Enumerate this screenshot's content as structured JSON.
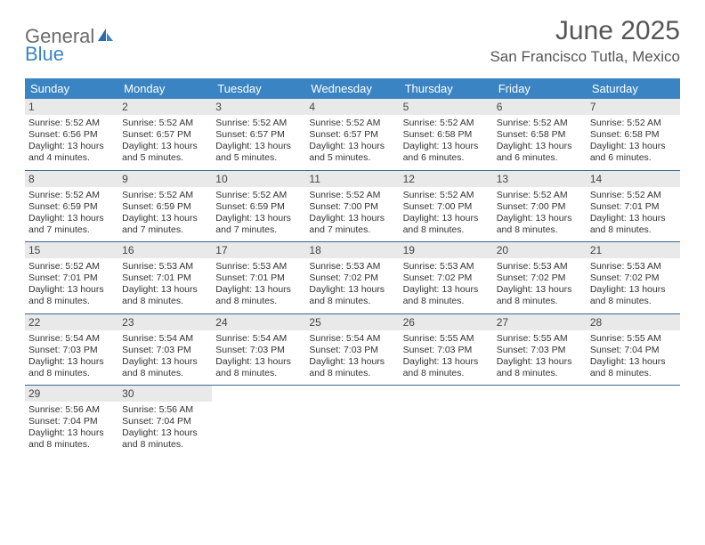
{
  "brand": {
    "part1": "General",
    "part2": "Blue"
  },
  "title": "June 2025",
  "location": "San Francisco Tutla, Mexico",
  "colors": {
    "header_bg": "#3b84c4",
    "daynum_bg": "#e9e9e9",
    "week_border": "#3b6a96",
    "text": "#333333",
    "title_text": "#555555",
    "brand_gray": "#6b6b6b",
    "brand_blue": "#3b84c4",
    "background": "#ffffff"
  },
  "days_of_week": [
    "Sunday",
    "Monday",
    "Tuesday",
    "Wednesday",
    "Thursday",
    "Friday",
    "Saturday"
  ],
  "weeks": [
    [
      {
        "n": "1",
        "sr": "Sunrise: 5:52 AM",
        "ss": "Sunset: 6:56 PM",
        "d1": "Daylight: 13 hours",
        "d2": "and 4 minutes."
      },
      {
        "n": "2",
        "sr": "Sunrise: 5:52 AM",
        "ss": "Sunset: 6:57 PM",
        "d1": "Daylight: 13 hours",
        "d2": "and 5 minutes."
      },
      {
        "n": "3",
        "sr": "Sunrise: 5:52 AM",
        "ss": "Sunset: 6:57 PM",
        "d1": "Daylight: 13 hours",
        "d2": "and 5 minutes."
      },
      {
        "n": "4",
        "sr": "Sunrise: 5:52 AM",
        "ss": "Sunset: 6:57 PM",
        "d1": "Daylight: 13 hours",
        "d2": "and 5 minutes."
      },
      {
        "n": "5",
        "sr": "Sunrise: 5:52 AM",
        "ss": "Sunset: 6:58 PM",
        "d1": "Daylight: 13 hours",
        "d2": "and 6 minutes."
      },
      {
        "n": "6",
        "sr": "Sunrise: 5:52 AM",
        "ss": "Sunset: 6:58 PM",
        "d1": "Daylight: 13 hours",
        "d2": "and 6 minutes."
      },
      {
        "n": "7",
        "sr": "Sunrise: 5:52 AM",
        "ss": "Sunset: 6:58 PM",
        "d1": "Daylight: 13 hours",
        "d2": "and 6 minutes."
      }
    ],
    [
      {
        "n": "8",
        "sr": "Sunrise: 5:52 AM",
        "ss": "Sunset: 6:59 PM",
        "d1": "Daylight: 13 hours",
        "d2": "and 7 minutes."
      },
      {
        "n": "9",
        "sr": "Sunrise: 5:52 AM",
        "ss": "Sunset: 6:59 PM",
        "d1": "Daylight: 13 hours",
        "d2": "and 7 minutes."
      },
      {
        "n": "10",
        "sr": "Sunrise: 5:52 AM",
        "ss": "Sunset: 6:59 PM",
        "d1": "Daylight: 13 hours",
        "d2": "and 7 minutes."
      },
      {
        "n": "11",
        "sr": "Sunrise: 5:52 AM",
        "ss": "Sunset: 7:00 PM",
        "d1": "Daylight: 13 hours",
        "d2": "and 7 minutes."
      },
      {
        "n": "12",
        "sr": "Sunrise: 5:52 AM",
        "ss": "Sunset: 7:00 PM",
        "d1": "Daylight: 13 hours",
        "d2": "and 8 minutes."
      },
      {
        "n": "13",
        "sr": "Sunrise: 5:52 AM",
        "ss": "Sunset: 7:00 PM",
        "d1": "Daylight: 13 hours",
        "d2": "and 8 minutes."
      },
      {
        "n": "14",
        "sr": "Sunrise: 5:52 AM",
        "ss": "Sunset: 7:01 PM",
        "d1": "Daylight: 13 hours",
        "d2": "and 8 minutes."
      }
    ],
    [
      {
        "n": "15",
        "sr": "Sunrise: 5:52 AM",
        "ss": "Sunset: 7:01 PM",
        "d1": "Daylight: 13 hours",
        "d2": "and 8 minutes."
      },
      {
        "n": "16",
        "sr": "Sunrise: 5:53 AM",
        "ss": "Sunset: 7:01 PM",
        "d1": "Daylight: 13 hours",
        "d2": "and 8 minutes."
      },
      {
        "n": "17",
        "sr": "Sunrise: 5:53 AM",
        "ss": "Sunset: 7:01 PM",
        "d1": "Daylight: 13 hours",
        "d2": "and 8 minutes."
      },
      {
        "n": "18",
        "sr": "Sunrise: 5:53 AM",
        "ss": "Sunset: 7:02 PM",
        "d1": "Daylight: 13 hours",
        "d2": "and 8 minutes."
      },
      {
        "n": "19",
        "sr": "Sunrise: 5:53 AM",
        "ss": "Sunset: 7:02 PM",
        "d1": "Daylight: 13 hours",
        "d2": "and 8 minutes."
      },
      {
        "n": "20",
        "sr": "Sunrise: 5:53 AM",
        "ss": "Sunset: 7:02 PM",
        "d1": "Daylight: 13 hours",
        "d2": "and 8 minutes."
      },
      {
        "n": "21",
        "sr": "Sunrise: 5:53 AM",
        "ss": "Sunset: 7:02 PM",
        "d1": "Daylight: 13 hours",
        "d2": "and 8 minutes."
      }
    ],
    [
      {
        "n": "22",
        "sr": "Sunrise: 5:54 AM",
        "ss": "Sunset: 7:03 PM",
        "d1": "Daylight: 13 hours",
        "d2": "and 8 minutes."
      },
      {
        "n": "23",
        "sr": "Sunrise: 5:54 AM",
        "ss": "Sunset: 7:03 PM",
        "d1": "Daylight: 13 hours",
        "d2": "and 8 minutes."
      },
      {
        "n": "24",
        "sr": "Sunrise: 5:54 AM",
        "ss": "Sunset: 7:03 PM",
        "d1": "Daylight: 13 hours",
        "d2": "and 8 minutes."
      },
      {
        "n": "25",
        "sr": "Sunrise: 5:54 AM",
        "ss": "Sunset: 7:03 PM",
        "d1": "Daylight: 13 hours",
        "d2": "and 8 minutes."
      },
      {
        "n": "26",
        "sr": "Sunrise: 5:55 AM",
        "ss": "Sunset: 7:03 PM",
        "d1": "Daylight: 13 hours",
        "d2": "and 8 minutes."
      },
      {
        "n": "27",
        "sr": "Sunrise: 5:55 AM",
        "ss": "Sunset: 7:03 PM",
        "d1": "Daylight: 13 hours",
        "d2": "and 8 minutes."
      },
      {
        "n": "28",
        "sr": "Sunrise: 5:55 AM",
        "ss": "Sunset: 7:04 PM",
        "d1": "Daylight: 13 hours",
        "d2": "and 8 minutes."
      }
    ],
    [
      {
        "n": "29",
        "sr": "Sunrise: 5:56 AM",
        "ss": "Sunset: 7:04 PM",
        "d1": "Daylight: 13 hours",
        "d2": "and 8 minutes."
      },
      {
        "n": "30",
        "sr": "Sunrise: 5:56 AM",
        "ss": "Sunset: 7:04 PM",
        "d1": "Daylight: 13 hours",
        "d2": "and 8 minutes."
      },
      null,
      null,
      null,
      null,
      null
    ]
  ]
}
